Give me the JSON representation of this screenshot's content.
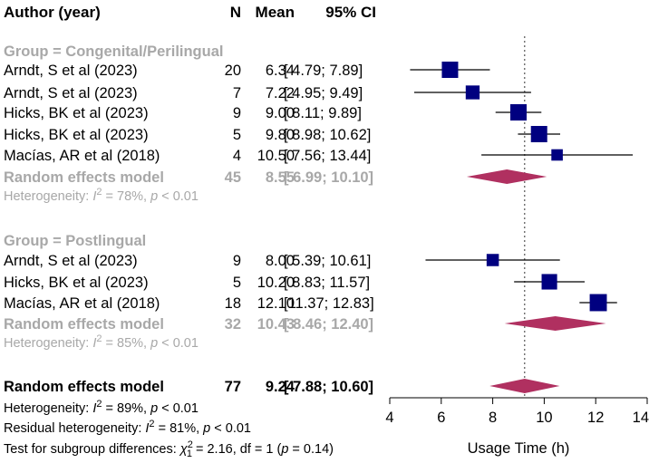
{
  "headers": {
    "study": "Author (year)",
    "n": "N",
    "mean": "Mean",
    "ci": "95% CI"
  },
  "colors": {
    "square": "#000080",
    "diamond": "#B03060",
    "muted": "#a8a8a8"
  },
  "groups": [
    {
      "label": "Group = Congenital/Perilingual",
      "studies": [
        {
          "name": "Arndt, S et al (2023)",
          "n": "20",
          "mean": "6.34",
          "ci": "[ 4.79;  7.89]",
          "est": 6.34,
          "lo": 4.79,
          "hi": 7.89,
          "w": 1.0
        },
        {
          "name": "Arndt, S et al (2023)",
          "n": "7",
          "mean": "7.22",
          "ci": "[ 4.95;  9.49]",
          "est": 7.22,
          "lo": 4.95,
          "hi": 9.49,
          "w": 0.85
        },
        {
          "name": "Hicks, BK et al (2023)",
          "n": "9",
          "mean": "9.00",
          "ci": "[ 8.11;  9.89]",
          "est": 9.0,
          "lo": 8.11,
          "hi": 9.89,
          "w": 1.0
        },
        {
          "name": "Hicks, BK et al (2023)",
          "n": "5",
          "mean": "9.80",
          "ci": "[ 8.98; 10.62]",
          "est": 9.8,
          "lo": 8.98,
          "hi": 10.62,
          "w": 1.0
        },
        {
          "name": "Macías, AR et al (2018)",
          "n": "4",
          "mean": "10.50",
          "ci": "[ 7.56; 13.44]",
          "est": 10.5,
          "lo": 7.56,
          "hi": 13.44,
          "w": 0.7
        }
      ],
      "model": {
        "label": "Random effects model",
        "n": "45",
        "mean": "8.55",
        "ci": "[ 6.99; 10.10]",
        "est": 8.55,
        "lo": 6.99,
        "hi": 10.1
      },
      "het_prefix": "Heterogeneity: ",
      "het_i2": "I",
      "het_sup": "2",
      "het_mid": " = 78%, ",
      "het_p": "p",
      "het_end": " < 0.01"
    },
    {
      "label": "Group = Postlingual",
      "studies": [
        {
          "name": "Arndt, S et al (2023)",
          "n": "9",
          "mean": "8.00",
          "ci": "[ 5.39; 10.61]",
          "est": 8.0,
          "lo": 5.39,
          "hi": 10.61,
          "w": 0.75
        },
        {
          "name": "Hicks, BK et al (2023)",
          "n": "5",
          "mean": "10.20",
          "ci": "[ 8.83; 11.57]",
          "est": 10.2,
          "lo": 8.83,
          "hi": 11.57,
          "w": 0.95
        },
        {
          "name": "Macías, AR et al (2018)",
          "n": "18",
          "mean": "12.10",
          "ci": "[11.37; 12.83]",
          "est": 12.1,
          "lo": 11.37,
          "hi": 12.83,
          "w": 1.05
        }
      ],
      "model": {
        "label": "Random effects model",
        "n": "32",
        "mean": "10.43",
        "ci": "[ 8.46; 12.40]",
        "est": 10.43,
        "lo": 8.46,
        "hi": 12.4
      },
      "het_prefix": "Heterogeneity: ",
      "het_i2": "I",
      "het_sup": "2",
      "het_mid": " = 85%, ",
      "het_p": "p",
      "het_end": " < 0.01"
    }
  ],
  "overall": {
    "label": "Random effects model",
    "n": "77",
    "mean": "9.24",
    "ci": "[ 7.88; 10.60]",
    "est": 9.24,
    "lo": 7.88,
    "hi": 10.6
  },
  "footer": {
    "het": {
      "prefix": "Heterogeneity: ",
      "i": "I",
      "sup": "2",
      "mid": " = 89%, ",
      "p": "p",
      "end": " < 0.01"
    },
    "resid": {
      "prefix": "Residual heterogeneity: ",
      "i": "I",
      "sup": "2",
      "mid": " = 81%, ",
      "p": "p",
      "end": " < 0.01"
    },
    "test": {
      "prefix": "Test for subgroup differences: ",
      "chi": "χ",
      "sup": "2",
      "sub": "1",
      "mid": " = 2.16, df = 1 (",
      "p": "p",
      "end": " = 0.14)"
    }
  },
  "chart_data": {
    "type": "forest",
    "xlabel": "Usage Time (h)",
    "xlim": [
      4,
      14
    ],
    "ticks": [
      "4",
      "6",
      "8",
      "10",
      "12",
      "14"
    ],
    "tick_values": [
      4,
      6,
      8,
      10,
      12,
      14
    ],
    "reference_line": 9.24
  }
}
